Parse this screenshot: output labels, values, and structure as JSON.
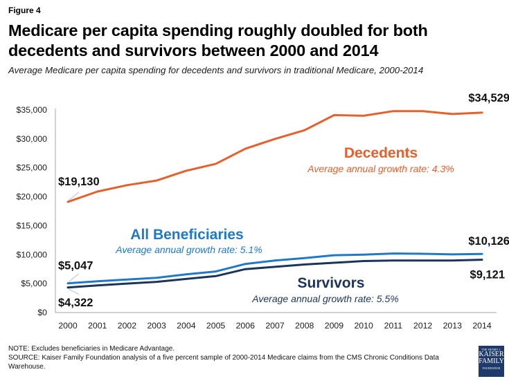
{
  "figure_label": "Figure 4",
  "title": "Medicare per capita spending roughly doubled for both decedents and survivors between 2000 and 2014",
  "subtitle": "Average Medicare per capita spending for decedents and survivors in traditional Medicare, 2000-2014",
  "note": "NOTE: Excludes beneficiaries in Medicare Advantage.",
  "source": "SOURCE: Kaiser Family Foundation analysis of a five percent sample of 2000-2014 Medicare claims from the CMS Chronic Conditions Data Warehouse.",
  "logo": {
    "line1": "THE HENRY J.",
    "line2": "KAISER",
    "line3": "FAMILY",
    "line4": "FOUNDATION"
  },
  "chart_data": {
    "type": "line",
    "title": "Medicare per capita spending roughly doubled for both decedents and survivors between 2000 and 2014",
    "xlabel": "",
    "ylabel": "",
    "ylim": [
      0,
      35000
    ],
    "yticks": [
      0,
      5000,
      10000,
      15000,
      20000,
      25000,
      30000,
      35000
    ],
    "ytick_labels": [
      "$0",
      "$5,000",
      "$10,000",
      "$15,000",
      "$20,000",
      "$25,000",
      "$30,000",
      "$35,000"
    ],
    "grid": false,
    "legend": "none (inline labels)",
    "categories": [
      "2000",
      "2001",
      "2002",
      "2003",
      "2004",
      "2005",
      "2006",
      "2007",
      "2008",
      "2009",
      "2010",
      "2011",
      "2012",
      "2013",
      "2014"
    ],
    "series": [
      {
        "name": "Decedents",
        "color": "#e5602b",
        "annotation": "Average annual growth rate: 4.3%",
        "values": [
          19130,
          20900,
          22000,
          22800,
          24500,
          25700,
          28300,
          30000,
          31500,
          34100,
          34000,
          34800,
          34800,
          34300,
          34529
        ],
        "labels": {
          "start": "$19,130",
          "end": "$34,529"
        }
      },
      {
        "name": "All Beneficiaries",
        "color": "#1f78c8",
        "annotation": "Average annual growth rate: 5.1%",
        "values": [
          5047,
          5400,
          5700,
          6000,
          6600,
          7100,
          8400,
          9000,
          9400,
          9900,
          10000,
          10200,
          10150,
          10050,
          10126
        ],
        "labels": {
          "start": "$5,047",
          "end": "$10,126"
        }
      },
      {
        "name": "Survivors",
        "color": "#1b3457",
        "annotation": "Average annual growth rate: 5.5%",
        "values": [
          4322,
          4700,
          5000,
          5300,
          5800,
          6300,
          7500,
          7900,
          8300,
          8600,
          8900,
          9000,
          9000,
          9000,
          9121
        ],
        "labels": {
          "start": "$4,322",
          "end": "$9,121"
        }
      }
    ]
  }
}
